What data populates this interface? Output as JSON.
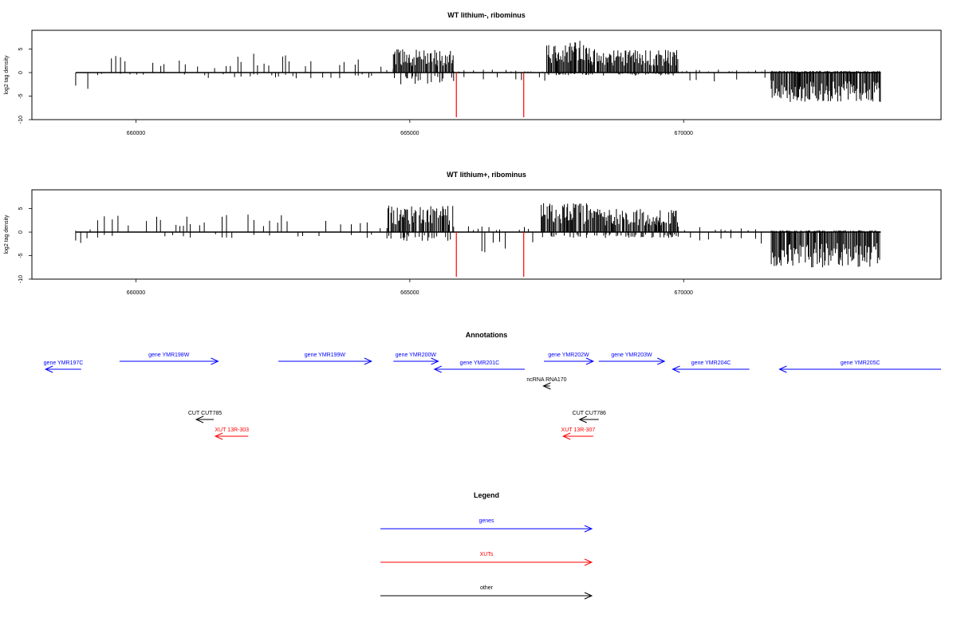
{
  "colors": {
    "genes": "#0000ff",
    "xuts": "#ff0000",
    "other": "#000000",
    "marker": "#ff0000"
  },
  "chart_data": [
    {
      "type": "bar",
      "title": "WT lithium-, ribominus",
      "xlabel": "",
      "ylabel": "log2 tag density",
      "xlim": [
        658100,
        674700
      ],
      "ylim": [
        -10,
        9
      ],
      "x_ticks": [
        "660000",
        "665000",
        "670000"
      ],
      "y_ticks": [
        "-10",
        "-5",
        "0",
        "5"
      ],
      "grid": false,
      "red_markers_x": [
        665850,
        667080
      ],
      "density_profile": [
        {
          "x_start": 658900,
          "x_end": 659200,
          "pos": 0,
          "neg": 3
        },
        {
          "x_start": 659300,
          "x_end": 660900,
          "pos": 3,
          "neg": 0.5
        },
        {
          "x_start": 660900,
          "x_end": 661800,
          "pos": 1.5,
          "neg": 1
        },
        {
          "x_start": 661800,
          "x_end": 664300,
          "pos": 3.5,
          "neg": 1
        },
        {
          "x_start": 664300,
          "x_end": 664700,
          "pos": 1,
          "neg": 1.5
        },
        {
          "x_start": 664700,
          "x_end": 665800,
          "pos": 4,
          "neg": 2
        },
        {
          "x_start": 665800,
          "x_end": 667100,
          "pos": 0.5,
          "neg": 1.5
        },
        {
          "x_start": 667100,
          "x_end": 667500,
          "pos": 0.3,
          "neg": 1.5
        },
        {
          "x_start": 667500,
          "x_end": 668300,
          "pos": 5.5,
          "neg": 0.5
        },
        {
          "x_start": 668300,
          "x_end": 669900,
          "pos": 4,
          "neg": 0.5
        },
        {
          "x_start": 669900,
          "x_end": 671600,
          "pos": 0.5,
          "neg": 1.5
        },
        {
          "x_start": 671600,
          "x_end": 673600,
          "pos": 0.3,
          "neg": 5
        }
      ]
    },
    {
      "type": "bar",
      "title": "WT lithium+, ribominus",
      "xlabel": "",
      "ylabel": "log2 tag density",
      "xlim": [
        658100,
        674700
      ],
      "ylim": [
        -10,
        9
      ],
      "x_ticks": [
        "660000",
        "665000",
        "670000"
      ],
      "y_ticks": [
        "-10",
        "-5",
        "0",
        "5"
      ],
      "grid": false,
      "red_markers_x": [
        665850,
        667080
      ],
      "density_profile": [
        {
          "x_start": 658900,
          "x_end": 659200,
          "pos": 0.5,
          "neg": 2.5
        },
        {
          "x_start": 659300,
          "x_end": 664300,
          "pos": 3,
          "neg": 1
        },
        {
          "x_start": 664300,
          "x_end": 664600,
          "pos": 1.5,
          "neg": 1.5
        },
        {
          "x_start": 664600,
          "x_end": 665800,
          "pos": 4.5,
          "neg": 1.5
        },
        {
          "x_start": 665800,
          "x_end": 667000,
          "pos": 1,
          "neg": 3.5
        },
        {
          "x_start": 667000,
          "x_end": 667400,
          "pos": 1,
          "neg": 2
        },
        {
          "x_start": 667400,
          "x_end": 668300,
          "pos": 5,
          "neg": 1
        },
        {
          "x_start": 668300,
          "x_end": 669900,
          "pos": 4,
          "neg": 1
        },
        {
          "x_start": 669900,
          "x_end": 671600,
          "pos": 1,
          "neg": 2
        },
        {
          "x_start": 671600,
          "x_end": 673600,
          "pos": 0.3,
          "neg": 6
        }
      ]
    }
  ],
  "annotations": {
    "title": "Annotations",
    "features": [
      {
        "label": "gene YMR197C",
        "kind": "genes",
        "strand": "-",
        "start": 658350,
        "end": 659000
      },
      {
        "label": "gene YMR198W",
        "kind": "genes",
        "strand": "+",
        "start": 659700,
        "end": 661500
      },
      {
        "label": "gene YMR199W",
        "kind": "genes",
        "strand": "+",
        "start": 662600,
        "end": 664300
      },
      {
        "label": "gene YMR200W",
        "kind": "genes",
        "strand": "+",
        "start": 664700,
        "end": 665520
      },
      {
        "label": "gene YMR201C",
        "kind": "genes",
        "strand": "-",
        "start": 665450,
        "end": 667100
      },
      {
        "label": "gene YMR202W",
        "kind": "genes",
        "strand": "+",
        "start": 667450,
        "end": 668350
      },
      {
        "label": "gene YMR203W",
        "kind": "genes",
        "strand": "+",
        "start": 668450,
        "end": 669650
      },
      {
        "label": "gene YMR204C",
        "kind": "genes",
        "strand": "-",
        "start": 669800,
        "end": 671200
      },
      {
        "label": "gene YMR205C",
        "kind": "genes",
        "strand": "-",
        "start": 671750,
        "end": 674700
      },
      {
        "label": "ncRNA RNA170",
        "kind": "other",
        "strand": "-",
        "start": 667440,
        "end": 667560
      },
      {
        "label": "CUT CUT785",
        "kind": "other",
        "strand": "-",
        "start": 661100,
        "end": 661420
      },
      {
        "label": "XUT 13R-303",
        "kind": "xuts",
        "strand": "-",
        "start": 661450,
        "end": 662050
      },
      {
        "label": "CUT CUT786",
        "kind": "other",
        "strand": "-",
        "start": 668100,
        "end": 668450
      },
      {
        "label": "XUT 13R-307",
        "kind": "xuts",
        "strand": "-",
        "start": 667800,
        "end": 668350
      }
    ]
  },
  "legend": {
    "title": "Legend",
    "items": [
      {
        "label": "genes",
        "kind": "genes"
      },
      {
        "label": "XUTs",
        "kind": "xuts"
      },
      {
        "label": "other",
        "kind": "other"
      }
    ]
  }
}
